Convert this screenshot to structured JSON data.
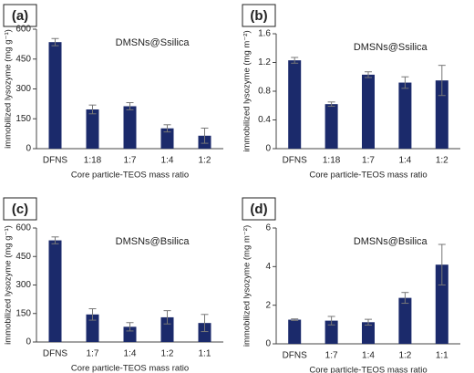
{
  "chart_data": [
    {
      "type": "bar",
      "panel_label": "(a)",
      "annotation": "DMSNs@Ssilica",
      "y_label": "immobilized lysozyme (mg g⁻¹)",
      "x_label": "Core particle-TEOS mass ratio",
      "categories": [
        "DFNS",
        "1:18",
        "1:7",
        "1:4",
        "1:2"
      ],
      "values": [
        535,
        197,
        213,
        102,
        65
      ],
      "errors": [
        18,
        22,
        18,
        18,
        38
      ],
      "color": "#1b2a6b",
      "ylim": [
        0,
        600
      ],
      "yticks": [
        0,
        150,
        300,
        450,
        600
      ]
    },
    {
      "type": "bar",
      "panel_label": "(b)",
      "annotation": "DMSNs@Ssilica",
      "y_label": "immobilized lysozyme (mg m⁻²)",
      "x_label": "Core particle-TEOS mass ratio",
      "categories": [
        "DFNS",
        "1:18",
        "1:7",
        "1:4",
        "1:2"
      ],
      "values": [
        1.23,
        0.62,
        1.03,
        0.92,
        0.95
      ],
      "errors": [
        0.04,
        0.03,
        0.04,
        0.08,
        0.21
      ],
      "color": "#1b2a6b",
      "ylim": [
        0,
        1.6
      ],
      "yticks": [
        0,
        0.4,
        0.8,
        1.2,
        1.6
      ]
    },
    {
      "type": "bar",
      "panel_label": "(c)",
      "annotation": "DMSNs@Bsilica",
      "y_label": "immobilized lysozyme (mg g⁻¹)",
      "x_label": "Core particle-TEOS mass ratio",
      "categories": [
        "DFNS",
        "1:7",
        "1:4",
        "1:2",
        "1:1"
      ],
      "values": [
        535,
        145,
        80,
        130,
        100
      ],
      "errors": [
        18,
        30,
        22,
        35,
        45
      ],
      "color": "#1b2a6b",
      "ylim": [
        0,
        600
      ],
      "yticks": [
        0,
        150,
        300,
        450,
        600
      ]
    },
    {
      "type": "bar",
      "panel_label": "(d)",
      "annotation": "DMSNs@Bsilica",
      "y_label": "immobilized lysozyme (mg m⁻²)",
      "x_label": "Core particle-TEOS mass ratio",
      "categories": [
        "DFNS",
        "1:7",
        "1:4",
        "1:2",
        "1:1"
      ],
      "values": [
        1.25,
        1.2,
        1.12,
        2.38,
        4.1
      ],
      "errors": [
        0.04,
        0.22,
        0.15,
        0.28,
        1.05
      ],
      "color": "#1b2a6b",
      "ylim": [
        0,
        6
      ],
      "yticks": [
        0,
        2,
        4,
        6
      ]
    }
  ]
}
